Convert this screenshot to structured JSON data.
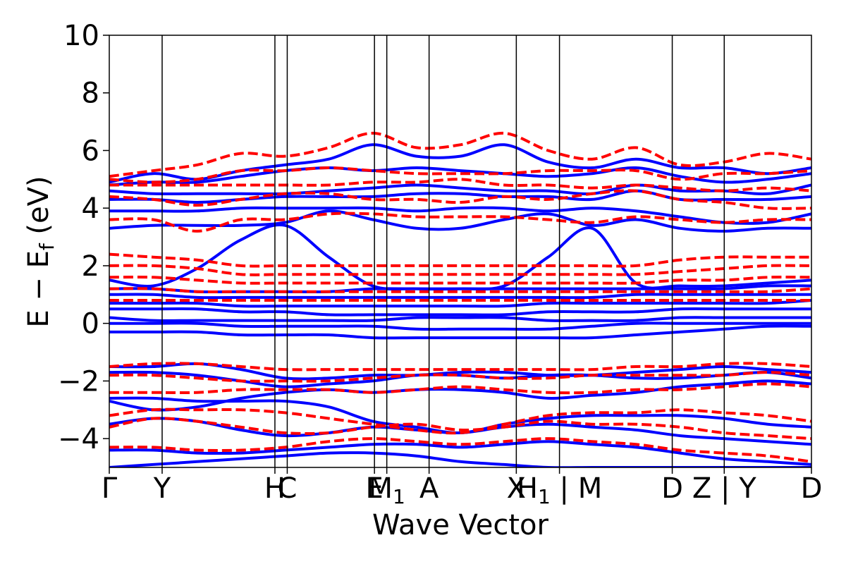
{
  "chart_data": {
    "type": "line",
    "title": "",
    "xlabel": "Wave Vector",
    "ylabel": "E − E",
    "ylabel_sub": "f",
    "ylabel_unit": " (eV)",
    "ylim": [
      -5,
      10
    ],
    "yticks": [
      -4,
      -2,
      0,
      2,
      4,
      6,
      8,
      10
    ],
    "ytick_labels": [
      "−4",
      "−2",
      "0",
      "2",
      "4",
      "6",
      "8",
      "10"
    ],
    "grid": false,
    "x_segments": [
      {
        "from": "Γ",
        "to": "Y",
        "length": 0.6
      },
      {
        "from": "Y",
        "to": "H",
        "length": 1.28
      },
      {
        "from": "H",
        "to": "C",
        "length": 0.14
      },
      {
        "from": "C",
        "to": "E",
        "length": 0.99
      },
      {
        "from": "E",
        "to": "M1",
        "length": 0.14
      },
      {
        "from": "M1",
        "to": "A",
        "length": 0.48
      },
      {
        "from": "A",
        "to": "X",
        "length": 0.99
      },
      {
        "from": "X",
        "to": "H1",
        "length": 0.49
      },
      {
        "from": "M",
        "to": "D",
        "length": 1.28
      },
      {
        "from": "D",
        "to": "Z",
        "length": 0.59
      },
      {
        "from": "Y",
        "to": "D",
        "length": 0.99
      }
    ],
    "high_symmetry_ticks": [
      {
        "label": "Γ"
      },
      {
        "label": "Y"
      },
      {
        "label": "H"
      },
      {
        "label": "C"
      },
      {
        "label": "E"
      },
      {
        "label": "M",
        "sub": "1"
      },
      {
        "label": "A"
      },
      {
        "label": "X"
      },
      {
        "label": "H",
        "sub": "1",
        "suffix": " | M"
      },
      {
        "label": "D"
      },
      {
        "label": "Z | Y"
      },
      {
        "label": "D"
      }
    ],
    "series": [
      {
        "style": "solid",
        "color": "#0000ff",
        "bands": [
          [
            -5.0,
            -4.9,
            -4.8,
            -4.7,
            -4.6,
            -4.5,
            -4.5,
            -4.6,
            -4.8,
            -4.9,
            -5.0,
            -5.0,
            -5.0,
            -5.0,
            -5.0,
            -5.0,
            -5.0
          ],
          [
            -4.4,
            -4.4,
            -4.5,
            -4.5,
            -4.4,
            -4.3,
            -4.2,
            -4.2,
            -4.3,
            -4.2,
            -4.1,
            -4.2,
            -4.3,
            -4.5,
            -4.7,
            -4.8,
            -4.9
          ],
          [
            -3.5,
            -3.3,
            -3.4,
            -3.7,
            -3.9,
            -3.8,
            -3.6,
            -3.7,
            -3.8,
            -3.6,
            -3.5,
            -3.6,
            -3.7,
            -3.9,
            -4.0,
            -4.1,
            -4.2
          ],
          [
            -2.6,
            -2.6,
            -2.7,
            -2.7,
            -2.7,
            -2.9,
            -3.4,
            -3.6,
            -3.8,
            -3.5,
            -3.3,
            -3.2,
            -3.2,
            -3.2,
            -3.3,
            -3.5,
            -3.6
          ],
          [
            -2.7,
            -3.0,
            -2.9,
            -2.6,
            -2.4,
            -2.3,
            -2.4,
            -2.3,
            -2.3,
            -2.4,
            -2.6,
            -2.5,
            -2.4,
            -2.2,
            -2.1,
            -2.0,
            -2.1
          ],
          [
            -1.7,
            -1.7,
            -1.8,
            -2.0,
            -2.2,
            -2.1,
            -2.0,
            -1.8,
            -1.8,
            -1.9,
            -1.8,
            -1.8,
            -1.9,
            -1.9,
            -1.8,
            -1.7,
            -1.9
          ],
          [
            -1.5,
            -1.5,
            -1.4,
            -1.6,
            -1.9,
            -1.9,
            -1.8,
            -1.8,
            -1.7,
            -1.7,
            -1.8,
            -1.8,
            -1.7,
            -1.6,
            -1.5,
            -1.6,
            -1.7
          ],
          [
            -0.3,
            -0.3,
            -0.3,
            -0.4,
            -0.4,
            -0.4,
            -0.5,
            -0.5,
            -0.5,
            -0.5,
            -0.5,
            -0.5,
            -0.4,
            -0.3,
            -0.2,
            -0.1,
            -0.1
          ],
          [
            0.0,
            0.0,
            0.0,
            -0.1,
            -0.1,
            -0.1,
            -0.1,
            -0.2,
            -0.2,
            -0.2,
            -0.2,
            -0.1,
            0.0,
            0.0,
            0.0,
            0.0,
            0.0
          ],
          [
            0.2,
            0.1,
            0.1,
            0.1,
            0.1,
            0.1,
            0.1,
            0.2,
            0.2,
            0.2,
            0.1,
            0.1,
            0.1,
            0.2,
            0.2,
            0.2,
            0.2
          ],
          [
            0.5,
            0.5,
            0.5,
            0.4,
            0.4,
            0.3,
            0.3,
            0.3,
            0.3,
            0.3,
            0.4,
            0.4,
            0.4,
            0.5,
            0.5,
            0.5,
            0.5
          ],
          [
            0.7,
            0.7,
            0.7,
            0.6,
            0.6,
            0.6,
            0.6,
            0.6,
            0.6,
            0.6,
            0.7,
            0.7,
            0.7,
            0.7,
            0.7,
            0.7,
            0.8
          ],
          [
            1.0,
            1.0,
            0.9,
            0.9,
            0.9,
            0.9,
            0.9,
            0.9,
            0.9,
            0.9,
            0.9,
            0.9,
            1.0,
            1.0,
            1.0,
            1.0,
            1.0
          ],
          [
            1.2,
            1.2,
            1.1,
            1.1,
            1.1,
            1.1,
            1.2,
            1.2,
            1.2,
            1.2,
            1.2,
            1.2,
            1.2,
            1.2,
            1.2,
            1.3,
            1.3
          ],
          [
            1.5,
            1.3,
            1.9,
            2.9,
            3.4,
            2.3,
            1.3,
            1.2,
            1.2,
            1.3,
            2.3,
            3.3,
            1.4,
            1.3,
            1.3,
            1.4,
            1.5
          ],
          [
            3.3,
            3.4,
            3.4,
            3.4,
            3.5,
            3.9,
            3.6,
            3.3,
            3.3,
            3.6,
            3.8,
            3.4,
            3.6,
            3.3,
            3.2,
            3.3,
            3.3
          ],
          [
            3.9,
            3.9,
            3.9,
            4.0,
            4.0,
            4.0,
            4.0,
            3.9,
            4.0,
            4.0,
            3.9,
            4.0,
            3.9,
            3.7,
            3.5,
            3.5,
            3.8
          ],
          [
            4.3,
            4.3,
            4.2,
            4.3,
            4.4,
            4.4,
            4.4,
            4.5,
            4.5,
            4.4,
            4.4,
            4.3,
            4.6,
            4.3,
            4.3,
            4.3,
            4.4
          ],
          [
            4.6,
            4.5,
            4.5,
            4.5,
            4.5,
            4.6,
            4.7,
            4.8,
            4.7,
            4.6,
            4.6,
            4.5,
            4.8,
            4.6,
            4.6,
            4.5,
            4.8
          ],
          [
            4.8,
            4.9,
            4.9,
            5.1,
            5.3,
            5.4,
            5.3,
            5.4,
            5.3,
            5.2,
            5.1,
            5.2,
            5.4,
            5.1,
            4.9,
            5.0,
            5.2
          ],
          [
            4.9,
            5.2,
            5.0,
            5.3,
            5.5,
            5.7,
            6.2,
            5.8,
            5.8,
            6.2,
            5.6,
            5.4,
            5.7,
            5.4,
            5.4,
            5.2,
            5.4
          ]
        ]
      },
      {
        "style": "dashed",
        "color": "#ff0000",
        "bands": [
          [
            -4.3,
            -4.3,
            -4.4,
            -4.4,
            -4.3,
            -4.1,
            -4.0,
            -4.1,
            -4.2,
            -4.1,
            -4.0,
            -4.1,
            -4.2,
            -4.4,
            -4.5,
            -4.6,
            -4.8
          ],
          [
            -3.6,
            -3.3,
            -3.4,
            -3.6,
            -3.8,
            -3.8,
            -3.6,
            -3.5,
            -3.7,
            -3.6,
            -3.4,
            -3.5,
            -3.5,
            -3.6,
            -3.8,
            -3.9,
            -4.0
          ],
          [
            -3.2,
            -3.0,
            -3.0,
            -3.0,
            -3.1,
            -3.3,
            -3.5,
            -3.7,
            -3.8,
            -3.5,
            -3.2,
            -3.1,
            -3.1,
            -3.0,
            -3.1,
            -3.2,
            -3.4
          ],
          [
            -2.4,
            -2.4,
            -2.4,
            -2.3,
            -2.3,
            -2.3,
            -2.4,
            -2.3,
            -2.2,
            -2.3,
            -2.4,
            -2.4,
            -2.3,
            -2.3,
            -2.2,
            -2.1,
            -2.2
          ],
          [
            -1.8,
            -1.8,
            -1.9,
            -2.0,
            -2.0,
            -2.0,
            -1.9,
            -1.8,
            -1.8,
            -1.9,
            -1.9,
            -1.8,
            -1.8,
            -1.8,
            -1.8,
            -1.7,
            -1.8
          ],
          [
            -1.5,
            -1.4,
            -1.4,
            -1.5,
            -1.6,
            -1.6,
            -1.6,
            -1.6,
            -1.6,
            -1.6,
            -1.6,
            -1.6,
            -1.5,
            -1.5,
            -1.4,
            -1.4,
            -1.5
          ],
          [
            0.8,
            0.8,
            0.8,
            0.8,
            0.8,
            0.8,
            0.8,
            0.8,
            0.8,
            0.8,
            0.8,
            0.8,
            0.8,
            0.8,
            0.8,
            0.8,
            0.8
          ],
          [
            1.2,
            1.2,
            1.1,
            1.1,
            1.1,
            1.1,
            1.1,
            1.1,
            1.1,
            1.1,
            1.1,
            1.1,
            1.1,
            1.1,
            1.1,
            1.1,
            1.2
          ],
          [
            1.6,
            1.6,
            1.5,
            1.4,
            1.4,
            1.4,
            1.4,
            1.4,
            1.4,
            1.4,
            1.4,
            1.4,
            1.4,
            1.5,
            1.5,
            1.6,
            1.6
          ],
          [
            2.0,
            2.0,
            1.9,
            1.7,
            1.7,
            1.7,
            1.7,
            1.7,
            1.7,
            1.7,
            1.7,
            1.7,
            1.7,
            1.8,
            1.9,
            2.0,
            2.0
          ],
          [
            2.4,
            2.3,
            2.2,
            2.0,
            2.0,
            2.0,
            2.0,
            2.0,
            2.0,
            2.0,
            2.0,
            2.0,
            2.0,
            2.2,
            2.3,
            2.3,
            2.3
          ],
          [
            3.6,
            3.6,
            3.2,
            3.6,
            3.6,
            3.8,
            3.8,
            3.7,
            3.7,
            3.7,
            3.6,
            3.5,
            3.7,
            3.6,
            3.5,
            3.6,
            3.6
          ],
          [
            4.4,
            4.3,
            4.1,
            4.3,
            4.5,
            4.5,
            4.3,
            4.3,
            4.2,
            4.4,
            4.3,
            4.5,
            4.6,
            4.3,
            4.2,
            4.0,
            4.0
          ],
          [
            4.8,
            4.8,
            4.8,
            4.8,
            4.8,
            4.8,
            4.9,
            4.9,
            5.0,
            4.8,
            4.8,
            4.7,
            4.8,
            4.7,
            4.6,
            4.7,
            4.6
          ],
          [
            5.0,
            4.9,
            5.0,
            5.3,
            5.3,
            5.4,
            5.3,
            5.2,
            5.2,
            5.2,
            5.3,
            5.3,
            5.3,
            5.0,
            5.2,
            5.2,
            5.3
          ],
          [
            5.1,
            5.3,
            5.5,
            5.9,
            5.8,
            6.1,
            6.6,
            6.1,
            6.2,
            6.6,
            6.0,
            5.7,
            6.1,
            5.5,
            5.6,
            5.9,
            5.7
          ]
        ]
      }
    ]
  }
}
